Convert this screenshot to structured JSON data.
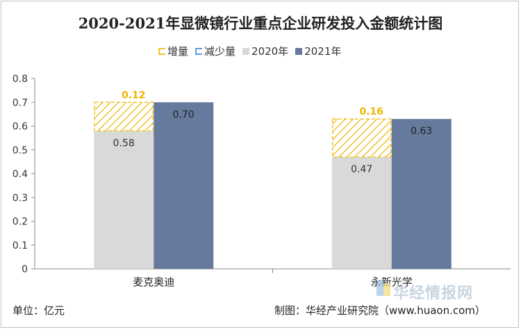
{
  "title": "2020-2021年显微镜行业重点企业研发投入金额统计图",
  "unit_note": "单位：亿元",
  "source_note": "制图：华经产业研究院（www.huaon.com）",
  "watermark": "华经情报网",
  "legend": {
    "increase": "增量",
    "decrease": "减少量",
    "y2020": "2020年",
    "y2021": "2021年"
  },
  "colors": {
    "y2020": "#d9d9d9",
    "y2021": "#667a9e",
    "increase": "#f2c22a",
    "decrease": "#5b9bd5",
    "label_increase": "#f0b400"
  },
  "chart_data": {
    "type": "bar",
    "categories": [
      "麦克奥迪",
      "永新光学"
    ],
    "series": [
      {
        "name": "2020年",
        "values": [
          0.58,
          0.47
        ]
      },
      {
        "name": "2021年",
        "values": [
          0.7,
          0.63
        ]
      },
      {
        "name": "增量",
        "values": [
          0.12,
          0.16
        ]
      }
    ],
    "ylim": [
      0,
      0.8
    ],
    "yticks": [
      "0",
      "0.1",
      "0.2",
      "0.3",
      "0.4",
      "0.5",
      "0.6",
      "0.7",
      "0.8"
    ],
    "value_labels": {
      "y2020": [
        "0.58",
        "0.47"
      ],
      "y2021": [
        "0.70",
        "0.63"
      ],
      "increase": [
        "0.12",
        "0.16"
      ]
    },
    "legend_position": "top",
    "grid": false
  }
}
